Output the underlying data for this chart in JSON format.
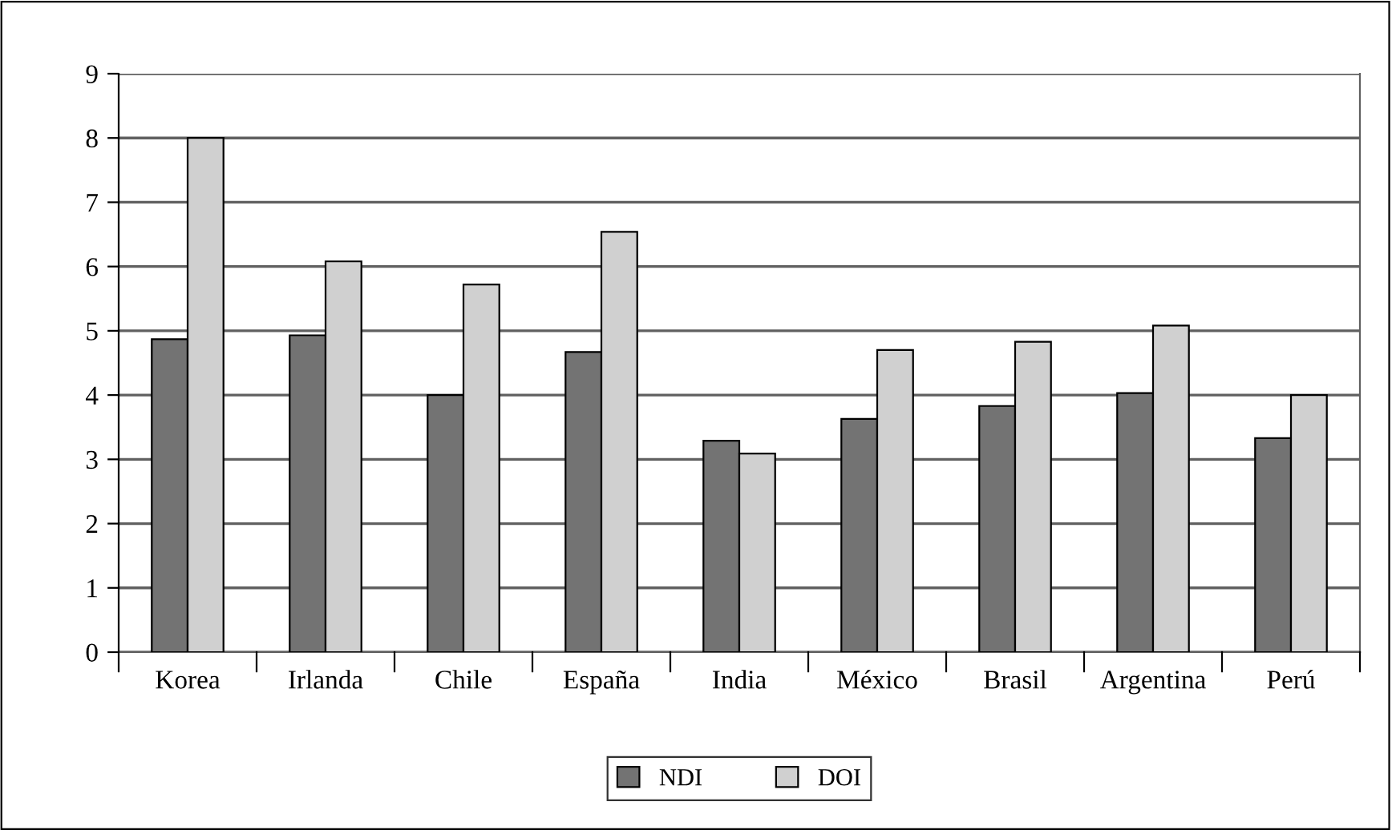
{
  "chart_data": {
    "type": "bar",
    "categories": [
      "Korea",
      "Irlanda",
      "Chile",
      "España",
      "India",
      "México",
      "Brasil",
      "Argentina",
      "Perú"
    ],
    "series": [
      {
        "name": "NDI",
        "color": "#737373",
        "values": [
          4.87,
          4.93,
          4.0,
          4.67,
          3.29,
          3.63,
          3.83,
          4.03,
          3.33
        ]
      },
      {
        "name": "DOI",
        "color": "#d0d0d0",
        "values": [
          8.0,
          6.08,
          5.72,
          6.54,
          3.09,
          4.7,
          4.83,
          5.08,
          4.0
        ]
      }
    ],
    "ylim": [
      0,
      9
    ],
    "yticks": [
      0,
      1,
      2,
      3,
      4,
      5,
      6,
      7,
      8,
      9
    ],
    "grid": "y",
    "legend": "bottom"
  }
}
